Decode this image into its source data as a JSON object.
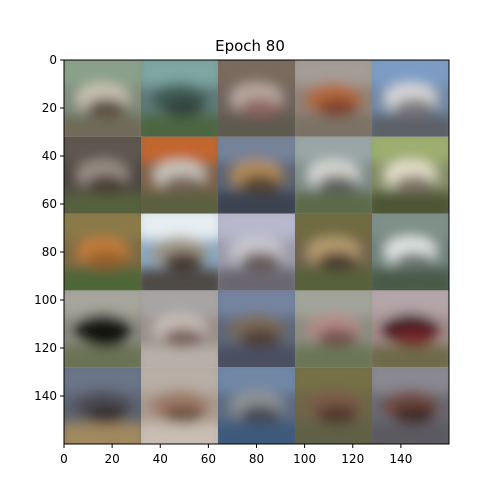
{
  "figure": {
    "title": "Epoch 80"
  },
  "axes": {
    "xlim": [
      0,
      160
    ],
    "ylim": [
      160,
      0
    ],
    "xticks": [
      "0",
      "20",
      "40",
      "60",
      "80",
      "100",
      "120",
      "140"
    ],
    "yticks": [
      "0",
      "20",
      "40",
      "60",
      "80",
      "100",
      "120",
      "140"
    ]
  },
  "grid": {
    "rows": 5,
    "cols": 5,
    "tiles": [
      {
        "bg": "#7d8a7a",
        "top": "#8aa08a",
        "mid": "#c9c2b2",
        "blob": "#4a3d30",
        "bottom": "#6f6b58"
      },
      {
        "bg": "#5f7a78",
        "top": "#7fa6a2",
        "mid": "#3f5b55",
        "blob": "#2f3f3a",
        "bottom": "#4c6640"
      },
      {
        "bg": "#6d625a",
        "top": "#7a6a5d",
        "mid": "#b9a9a0",
        "blob": "#8a5a58",
        "bottom": "#5e5a50"
      },
      {
        "bg": "#8f8175",
        "top": "#a39d96",
        "mid": "#b3693e",
        "blob": "#7a3d28",
        "bottom": "#7a7265"
      },
      {
        "bg": "#6f86a3",
        "top": "#7d9cc4",
        "mid": "#d8d8d8",
        "blob": "#6e6c70",
        "bottom": "#5c6068"
      },
      {
        "bg": "#4d4641",
        "top": "#5f5650",
        "mid": "#9a8f86",
        "blob": "#3a2e28",
        "bottom": "#56603e"
      },
      {
        "bg": "#7a6048",
        "top": "#c2662e",
        "mid": "#c8c4bc",
        "blob": "#6a5648",
        "bottom": "#5a6040"
      },
      {
        "bg": "#5a6372",
        "top": "#768399",
        "mid": "#b18a5a",
        "blob": "#4a3a2c",
        "bottom": "#3a4250"
      },
      {
        "bg": "#7c8a86",
        "top": "#9aa6a6",
        "mid": "#d6d6d2",
        "blob": "#4e5250",
        "bottom": "#5c6a4a"
      },
      {
        "bg": "#7f8a64",
        "top": "#9dae70",
        "mid": "#e4dfca",
        "blob": "#6e6558",
        "bottom": "#4e5436"
      },
      {
        "bg": "#7a6a44",
        "top": "#8a7a4a",
        "mid": "#c07a3a",
        "blob": "#8a5a2a",
        "bottom": "#4e6638"
      },
      {
        "bg": "#8aa6bf",
        "top": "#e6eef2",
        "mid": "#9f9686",
        "blob": "#3a2a22",
        "bottom": "#4e4844"
      },
      {
        "bg": "#9a9aaa",
        "top": "#b7b8cc",
        "mid": "#c8c6cc",
        "blob": "#5a4a44",
        "bottom": "#6a6670"
      },
      {
        "bg": "#6e644c",
        "top": "#6f6a40",
        "mid": "#b79b70",
        "blob": "#3a2c24",
        "bottom": "#56603a"
      },
      {
        "bg": "#6d7e78",
        "top": "#7e9088",
        "mid": "#e2e6e4",
        "blob": "#5c6660",
        "bottom": "#4a5a46"
      },
      {
        "bg": "#8a8a80",
        "top": "#a6a69c",
        "mid": "#1a1a18",
        "blob": "#111111",
        "bottom": "#6a7254"
      },
      {
        "bg": "#9a8e88",
        "top": "#a8a4a4",
        "mid": "#c4bcb4",
        "blob": "#6a4e48",
        "bottom": "#b8b0a8"
      },
      {
        "bg": "#5f6878",
        "top": "#7484a0",
        "mid": "#7a6a58",
        "blob": "#4a3a32",
        "bottom": "#4a5060"
      },
      {
        "bg": "#8a8c80",
        "top": "#a2a49a",
        "mid": "#b48a86",
        "blob": "#6a4a48",
        "bottom": "#6a7654"
      },
      {
        "bg": "#a08a8a",
        "top": "#b4a6a8",
        "mid": "#4a1e20",
        "blob": "#7a2a2c",
        "bottom": "#6e6a4a"
      },
      {
        "bg": "#5c6270",
        "top": "#6a7488",
        "mid": "#4e4c52",
        "blob": "#2e2c30",
        "bottom": "#a0885e"
      },
      {
        "bg": "#a8988c",
        "top": "#b8aea6",
        "mid": "#9c7a66",
        "blob": "#6a4c3c",
        "bottom": "#c8beb2"
      },
      {
        "bg": "#5c6a80",
        "top": "#7088a6",
        "mid": "#8e9294",
        "blob": "#3c404a",
        "bottom": "#3c5a7a"
      },
      {
        "bg": "#6c6648",
        "top": "#767046",
        "mid": "#7a5a4a",
        "blob": "#4a3226",
        "bottom": "#5e6044"
      },
      {
        "bg": "#6a6870",
        "top": "#8a8890",
        "mid": "#6e4a40",
        "blob": "#3a2624",
        "bottom": "#5c5a60"
      }
    ]
  }
}
